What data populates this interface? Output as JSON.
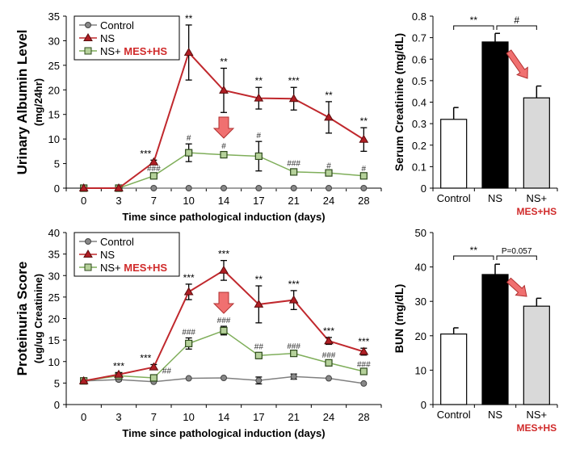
{
  "colors": {
    "control": "#808080",
    "ns": "#c0282d",
    "treat": "#7fae5a",
    "treat_fill": "#b5d19a",
    "highlight": "#d02a2a",
    "arrow": "#f07070"
  },
  "chart_data": [
    {
      "type": "line",
      "ylabel": "Urinary Albumin Level",
      "ylabel_unit": "(mg/24hr)",
      "xlabel": "Time since pathological induction (days)",
      "categories": [
        "0",
        "3",
        "7",
        "10",
        "14",
        "17",
        "21",
        "24",
        "28"
      ],
      "ylim": [
        0,
        35
      ],
      "yticks": [
        "0",
        "5",
        "10",
        "15",
        "20",
        "25",
        "30",
        "35"
      ],
      "legend": "top-left",
      "series": [
        {
          "name": "Control",
          "key": "control",
          "values": [
            0,
            0,
            0,
            0,
            0,
            0,
            0,
            0,
            0
          ],
          "errors": [
            0,
            0,
            0,
            0,
            0,
            0,
            0,
            0,
            0
          ],
          "annotations": [
            "",
            "",
            "",
            "",
            "",
            "",
            "",
            "",
            ""
          ]
        },
        {
          "name": "NS",
          "key": "ns",
          "values": [
            0,
            0,
            5.3,
            27.6,
            19.9,
            18.3,
            18.2,
            14.4,
            9.9
          ],
          "errors": [
            0,
            0,
            0.4,
            5.6,
            4.5,
            2.2,
            2.3,
            3.2,
            2.4
          ],
          "annotations": [
            "",
            "",
            "***",
            "**",
            "**",
            "**",
            "***",
            "**",
            "**"
          ]
        },
        {
          "name": "NS+",
          "name_highlight": "MES+HS",
          "key": "treat",
          "values": [
            0,
            0,
            2.5,
            7.2,
            6.8,
            6.5,
            3.3,
            3.1,
            2.5
          ],
          "errors": [
            0,
            0,
            0.3,
            1.8,
            0.6,
            3.0,
            0.6,
            0.3,
            0.3
          ],
          "annotations": [
            "",
            "",
            "###",
            "#",
            "#",
            "#",
            "###",
            "#",
            "#"
          ]
        }
      ]
    },
    {
      "type": "bar",
      "ylabel": "Serum Creatinine (mg/dL)",
      "categories": [
        "Control",
        "NS",
        "NS+"
      ],
      "category_highlight": "MES+HS",
      "ylim": [
        0,
        0.8
      ],
      "yticks": [
        "0",
        "0.1",
        "0.2",
        "0.3",
        "0.4",
        "0.5",
        "0.6",
        "0.7",
        "0.8"
      ],
      "values": [
        0.32,
        0.68,
        0.42
      ],
      "errors": [
        0.055,
        0.04,
        0.055
      ],
      "bar_colors": [
        "#ffffff",
        "#000000",
        "#d9d9d9"
      ],
      "brackets": [
        "**",
        "#"
      ]
    },
    {
      "type": "line",
      "ylabel": "Proteinuria Score",
      "ylabel_unit": "(ug/ug Creatinine)",
      "xlabel": "Time since pathological induction (days)",
      "categories": [
        "0",
        "3",
        "7",
        "10",
        "14",
        "17",
        "21",
        "24",
        "28"
      ],
      "ylim": [
        0,
        40
      ],
      "yticks": [
        "0",
        "5",
        "10",
        "15",
        "20",
        "25",
        "30",
        "35",
        "40"
      ],
      "legend": "top-left",
      "series": [
        {
          "name": "Control",
          "key": "control",
          "values": [
            5.5,
            5.8,
            5.3,
            6.1,
            6.2,
            5.6,
            6.5,
            6.1,
            4.9
          ],
          "errors": [
            0,
            0.3,
            0.2,
            0.2,
            0.2,
            0.8,
            0.6,
            0.2,
            0.2
          ],
          "annotations": [
            "",
            "",
            "",
            "",
            "",
            "",
            "",
            "",
            ""
          ]
        },
        {
          "name": "NS",
          "key": "ns",
          "values": [
            5.5,
            7.0,
            8.7,
            26.2,
            31.2,
            23.3,
            24.3,
            14.8,
            12.3
          ],
          "errors": [
            0.2,
            0.4,
            0.6,
            1.8,
            2.3,
            4.3,
            2.2,
            0.8,
            0.8
          ],
          "annotations": [
            "",
            "***",
            "***",
            "***",
            "***",
            "**",
            "***",
            "***",
            "***"
          ]
        },
        {
          "name": "NS+",
          "name_highlight": "MES+HS",
          "key": "treat",
          "values": [
            5.5,
            6.7,
            6.2,
            14.2,
            17.2,
            11.4,
            11.9,
            9.7,
            7.7
          ],
          "errors": [
            0.2,
            0.3,
            0.3,
            1.3,
            1.0,
            0.7,
            0.3,
            0.4,
            0.3
          ],
          "annotations": [
            "",
            "",
            "##",
            "###",
            "###",
            "##",
            "###",
            "###",
            "###"
          ]
        }
      ]
    },
    {
      "type": "bar",
      "ylabel": "BUN (mg/dL)",
      "categories": [
        "Control",
        "NS",
        "NS+"
      ],
      "category_highlight": "MES+HS",
      "ylim": [
        0,
        50
      ],
      "yticks": [
        "0",
        "10",
        "20",
        "30",
        "40",
        "50"
      ],
      "values": [
        20.5,
        37.8,
        28.6
      ],
      "errors": [
        1.8,
        3.0,
        2.3
      ],
      "bar_colors": [
        "#ffffff",
        "#000000",
        "#d9d9d9"
      ],
      "brackets": [
        "**",
        "P=0.057"
      ]
    }
  ]
}
